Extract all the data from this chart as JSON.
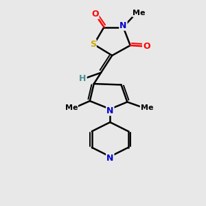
{
  "bg_color": "#e8e8e8",
  "atom_colors": {
    "S": "#ccaa00",
    "N": "#0000cc",
    "O": "#ff0000",
    "H": "#4a9090",
    "C": "#000000"
  },
  "lw": 1.8,
  "lw_double": 1.3,
  "fs": 9,
  "fs_small": 8,
  "xlim": [
    0,
    10
  ],
  "ylim": [
    0,
    10
  ]
}
